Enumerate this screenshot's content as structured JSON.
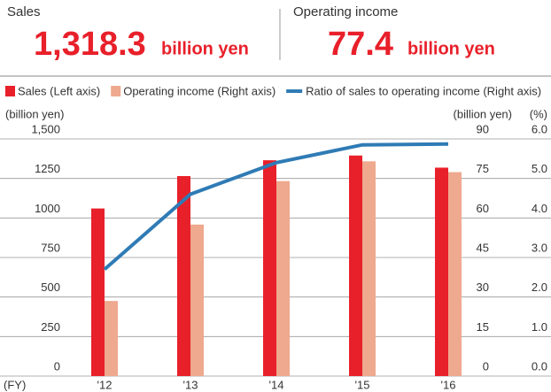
{
  "header": {
    "sales_label": "Sales",
    "sales_value": "1,318.3",
    "sales_unit": "billion yen",
    "oi_label": "Operating income",
    "oi_value": "77.4",
    "oi_unit": "billion yen"
  },
  "chart_data": {
    "type": "bar",
    "categories": [
      "'12",
      "'13",
      "'14",
      "'15",
      "'16"
    ],
    "x_label": "(FY)",
    "y_label": "(billion yen)",
    "y2_label": "(billion yen)",
    "y3_label": "(%)",
    "series": [
      {
        "name": "Sales (Left axis)",
        "color": "#e8202a",
        "type": "bar",
        "values": [
          1060,
          1265,
          1365,
          1395,
          1318.3
        ]
      },
      {
        "name": "Operating income (Right axis)",
        "color": "#eea98e",
        "type": "bar",
        "axis": "y2",
        "values": [
          28.5,
          57.5,
          74,
          81.5,
          77.4
        ]
      },
      {
        "name": "Ratio of sales to operating income (Right axis)",
        "color": "#2f7bb5",
        "type": "line",
        "axis": "y3",
        "values": [
          2.7,
          4.6,
          5.4,
          5.85,
          5.87
        ]
      }
    ],
    "ylim": [
      0,
      1500
    ],
    "yticks": [
      0,
      250,
      500,
      750,
      1000,
      1250,
      {
        "value": 1500,
        "label": "1,500"
      }
    ],
    "y2lim": [
      0,
      90
    ],
    "y2ticks": [
      0,
      15,
      30,
      45,
      60,
      75,
      90
    ],
    "y3lim": [
      0,
      6
    ],
    "y3ticks": [
      {
        "value": 0,
        "label": "0.0"
      },
      {
        "value": 1,
        "label": "1.0"
      },
      {
        "value": 2,
        "label": "2.0"
      },
      {
        "value": 3,
        "label": "3.0"
      },
      {
        "value": 4,
        "label": "4.0"
      },
      {
        "value": 5,
        "label": "5.0"
      },
      {
        "value": 6,
        "label": "6.0"
      }
    ],
    "grid": true
  }
}
